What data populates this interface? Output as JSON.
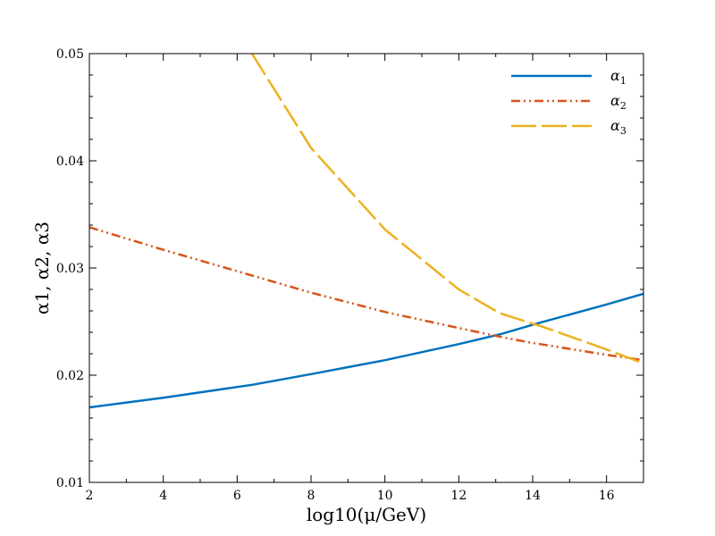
{
  "chart_data": {
    "type": "line",
    "title": "",
    "xlabel": "log10(μ/GeV)",
    "ylabel": "α1, α2, α3",
    "xlim": [
      2,
      17
    ],
    "ylim": [
      0.01,
      0.05
    ],
    "x_ticks": [
      2,
      4,
      6,
      8,
      10,
      12,
      14,
      16
    ],
    "y_ticks": [
      0.01,
      0.02,
      0.03,
      0.04,
      0.05
    ],
    "x_tick_labels": [
      "2",
      "4",
      "6",
      "8",
      "10",
      "12",
      "14",
      "16"
    ],
    "y_tick_labels": [
      "0.01",
      "0.02",
      "0.03",
      "0.04",
      "0.05"
    ],
    "grid": false,
    "legend_position": "top-right",
    "x": [
      2,
      4,
      6,
      6.4,
      8,
      10,
      12,
      13.1,
      14,
      14.2,
      16,
      17
    ],
    "series": [
      {
        "name": "α1",
        "symbol": "α",
        "sub": "1",
        "color": "#0072BD",
        "dash": "solid",
        "values": [
          0.017,
          0.0179,
          0.0189,
          0.0191,
          0.0201,
          0.0214,
          0.0229,
          0.0238,
          0.0247,
          0.0249,
          0.0266,
          0.0276
        ]
      },
      {
        "name": "α2",
        "symbol": "α",
        "sub": "2",
        "color": "#D95319",
        "dash": "dashdotdot",
        "values": [
          0.0338,
          0.0317,
          0.0297,
          0.0293,
          0.0277,
          0.0259,
          0.0244,
          0.0236,
          0.023,
          0.0229,
          0.0219,
          0.0214
        ]
      },
      {
        "name": "α3",
        "symbol": "α",
        "sub": "3",
        "color": "#EDB120",
        "dash": "longdash",
        "values": [
          null,
          null,
          null,
          0.05,
          0.0412,
          0.0336,
          0.028,
          0.0258,
          0.0248,
          0.0246,
          0.0224,
          0.0211
        ]
      }
    ]
  }
}
